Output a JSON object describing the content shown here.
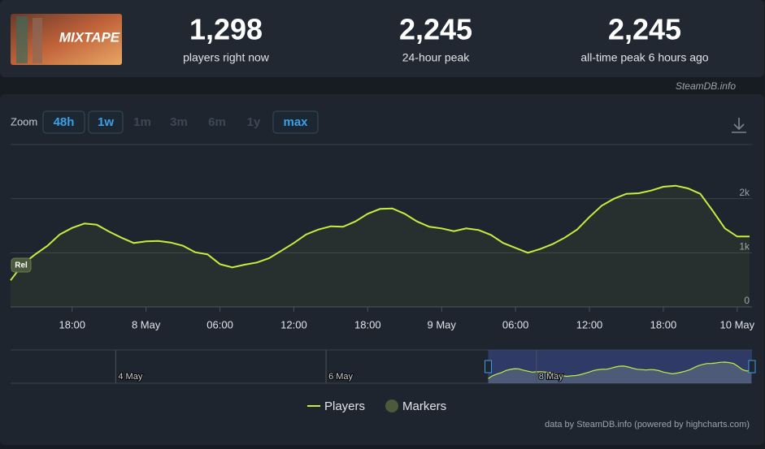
{
  "header": {
    "image_text": "MIXTAPE",
    "stats": [
      {
        "value": "1,298",
        "label": "players right now"
      },
      {
        "value": "2,245",
        "label": "24-hour peak"
      },
      {
        "value": "2,245",
        "label": "all-time peak 6 hours ago"
      }
    ],
    "source": "SteamDB.info"
  },
  "zoom": {
    "label": "Zoom",
    "buttons": [
      {
        "text": "48h",
        "active": true
      },
      {
        "text": "1w",
        "active": true
      },
      {
        "text": "1m",
        "active": false
      },
      {
        "text": "3m",
        "active": false
      },
      {
        "text": "6m",
        "active": false
      },
      {
        "text": "1y",
        "active": false
      },
      {
        "text": "max",
        "active": true
      }
    ]
  },
  "chart_data": {
    "type": "line",
    "x": [
      "7 May 13:00",
      "7 May 14:00",
      "7 May 15:00",
      "7 May 16:00",
      "7 May 17:00",
      "7 May 18:00",
      "7 May 19:00",
      "7 May 20:00",
      "7 May 21:00",
      "7 May 22:00",
      "7 May 23:00",
      "8 May 00:00",
      "8 May 01:00",
      "8 May 02:00",
      "8 May 03:00",
      "8 May 04:00",
      "8 May 05:00",
      "8 May 06:00",
      "8 May 07:00",
      "8 May 08:00",
      "8 May 09:00",
      "8 May 10:00",
      "8 May 11:00",
      "8 May 12:00",
      "8 May 13:00",
      "8 May 14:00",
      "8 May 15:00",
      "8 May 16:00",
      "8 May 17:00",
      "8 May 18:00",
      "8 May 19:00",
      "8 May 20:00",
      "8 May 21:00",
      "8 May 22:00",
      "8 May 23:00",
      "9 May 00:00",
      "9 May 01:00",
      "9 May 02:00",
      "9 May 03:00",
      "9 May 04:00",
      "9 May 05:00",
      "9 May 06:00",
      "9 May 07:00",
      "9 May 08:00",
      "9 May 09:00",
      "9 May 10:00",
      "9 May 11:00",
      "9 May 12:00",
      "9 May 13:00",
      "9 May 14:00",
      "9 May 15:00",
      "9 May 16:00",
      "9 May 17:00",
      "9 May 18:00",
      "9 May 19:00",
      "9 May 20:00",
      "9 May 21:00",
      "9 May 22:00",
      "9 May 23:00",
      "10 May 00:00",
      "10 May 01:00"
    ],
    "series": [
      {
        "name": "Players",
        "color": "#c4ef3f",
        "values": [
          490,
          790,
          970,
          1130,
          1340,
          1460,
          1540,
          1520,
          1390,
          1280,
          1180,
          1210,
          1220,
          1190,
          1130,
          1010,
          970,
          790,
          730,
          780,
          820,
          900,
          1040,
          1180,
          1340,
          1430,
          1490,
          1480,
          1580,
          1720,
          1810,
          1820,
          1720,
          1580,
          1480,
          1450,
          1400,
          1450,
          1420,
          1330,
          1180,
          1090,
          1000,
          1070,
          1160,
          1280,
          1430,
          1660,
          1870,
          2000,
          2090,
          2100,
          2150,
          2220,
          2240,
          2190,
          2090,
          1780,
          1450,
          1300,
          1300
        ]
      }
    ],
    "markers": {
      "name": "Markers",
      "color": "#4b5a3b",
      "items": [
        {
          "x": "7 May 13:00",
          "label": "Rel"
        }
      ]
    },
    "xlim": [
      "7 May 13:00",
      "10 May 01:12"
    ],
    "xticks": [
      {
        "value": "7 May 18:00",
        "label": "18:00"
      },
      {
        "value": "8 May 00:00",
        "label": "8 May"
      },
      {
        "value": "8 May 06:00",
        "label": "06:00"
      },
      {
        "value": "8 May 12:00",
        "label": "12:00"
      },
      {
        "value": "8 May 18:00",
        "label": "18:00"
      },
      {
        "value": "9 May 00:00",
        "label": "9 May"
      },
      {
        "value": "9 May 06:00",
        "label": "06:00"
      },
      {
        "value": "9 May 12:00",
        "label": "12:00"
      },
      {
        "value": "9 May 18:00",
        "label": "18:00"
      },
      {
        "value": "10 May 00:00",
        "label": "10 May"
      }
    ],
    "ylim": [
      0,
      3000
    ],
    "yticks": [
      0,
      {
        "value": 1000,
        "label": "1k"
      },
      {
        "value": 2000,
        "label": "2k"
      }
    ],
    "grid": true,
    "navigator": {
      "xlim": [
        "3 May 00:00",
        "10 May 01:12"
      ],
      "xticks": [
        {
          "value": "4 May 00:00",
          "label": "4 May"
        },
        {
          "value": "6 May 00:00",
          "label": "6 May"
        },
        {
          "value": "8 May 00:00",
          "label": "8 May"
        }
      ]
    },
    "credits": "data by SteamDB.info (powered by highcharts.com)"
  }
}
